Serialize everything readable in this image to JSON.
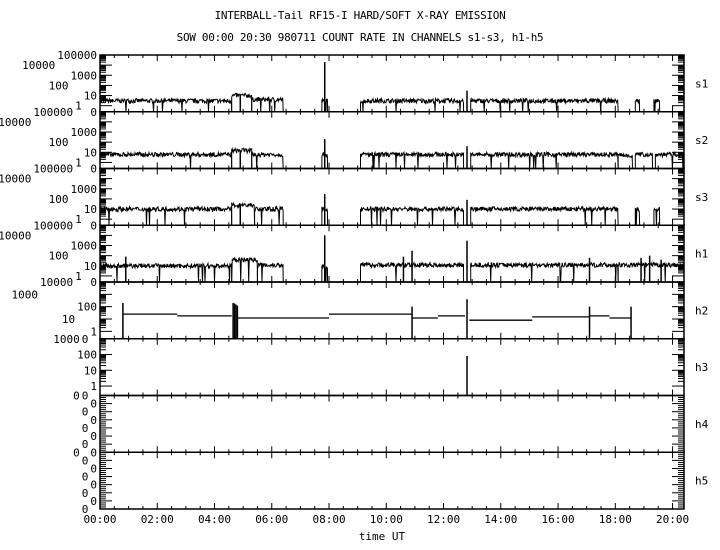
{
  "title": "INTERBALL-Tail RF15-I HARD/SOFT X-RAY EMISSION",
  "subtitle": "SOW 00:00 20:30 980711  COUNT RATE IN CHANNELS s1-s3, h1-h5",
  "chart_data": {
    "type": "line",
    "title": "INTERBALL-Tail RF15-I HARD/SOFT X-RAY EMISSION",
    "xlabel": "time UT",
    "x_unit": "hours UT",
    "xlim": [
      0,
      20.4
    ],
    "x_ticks": [
      "00:00",
      "02:00",
      "04:00",
      "06:00",
      "08:00",
      "10:00",
      "12:00",
      "14:00",
      "16:00",
      "18:00",
      "20:00"
    ],
    "y_scale": "log",
    "grid": false,
    "panels": [
      {
        "name": "s1",
        "y_ticks": [
          "0",
          "1",
          "10",
          "100",
          "1000",
          "10000",
          "100000"
        ],
        "segments": [
          [
            0,
            4.6,
            3
          ],
          [
            4.6,
            5.3,
            10
          ],
          [
            5.3,
            6.4,
            4
          ],
          [
            7.75,
            7.95,
            3
          ],
          [
            9.1,
            12.7,
            3
          ],
          [
            12.95,
            18.1,
            3
          ],
          [
            18.7,
            18.85,
            3
          ],
          [
            19.35,
            19.55,
            3
          ]
        ],
        "peaks": [
          [
            7.85,
            20000
          ],
          [
            12.82,
            30
          ],
          [
            4.9,
            12
          ]
        ]
      },
      {
        "name": "s2",
        "y_ticks": [
          "0",
          "1",
          "10",
          "100",
          "1000",
          "10000",
          "100000"
        ],
        "segments": [
          [
            0,
            4.6,
            6
          ],
          [
            4.6,
            5.3,
            15
          ],
          [
            5.3,
            6.4,
            6
          ],
          [
            7.75,
            7.95,
            6
          ],
          [
            9.1,
            12.7,
            6
          ],
          [
            12.95,
            18.1,
            6
          ],
          [
            18.1,
            18.6,
            5
          ],
          [
            18.7,
            19.3,
            6
          ],
          [
            19.4,
            20.4,
            6
          ]
        ],
        "peaks": [
          [
            7.85,
            200
          ],
          [
            12.82,
            40
          ],
          [
            4.9,
            15
          ]
        ]
      },
      {
        "name": "s3",
        "y_ticks": [
          "0",
          "1",
          "10",
          "100",
          "1000",
          "10000",
          "100000"
        ],
        "segments": [
          [
            0,
            4.6,
            10
          ],
          [
            4.6,
            5.4,
            25
          ],
          [
            5.4,
            6.4,
            10
          ],
          [
            7.75,
            7.95,
            10
          ],
          [
            9.1,
            12.7,
            10
          ],
          [
            12.95,
            18.1,
            10
          ],
          [
            18.7,
            18.85,
            10
          ],
          [
            19.35,
            19.55,
            10
          ]
        ],
        "peaks": [
          [
            7.85,
            300
          ],
          [
            12.82,
            80
          ],
          [
            4.9,
            30
          ]
        ]
      },
      {
        "name": "h1",
        "y_ticks": [
          "0",
          "1",
          "10",
          "100",
          "1000",
          "10000",
          "100000"
        ],
        "segments": [
          [
            0,
            4.6,
            10
          ],
          [
            4.6,
            5.5,
            40
          ],
          [
            5.5,
            6.4,
            12
          ],
          [
            7.75,
            7.95,
            10
          ],
          [
            9.1,
            12.7,
            12
          ],
          [
            12.95,
            18.1,
            12
          ],
          [
            18.1,
            20.4,
            12
          ]
        ],
        "peaks": [
          [
            0.9,
            80
          ],
          [
            7.85,
            10000
          ],
          [
            12.82,
            3000
          ],
          [
            10.6,
            80
          ],
          [
            10.9,
            300
          ],
          [
            17.1,
            60
          ],
          [
            18.9,
            60
          ],
          [
            19.2,
            100
          ],
          [
            19.6,
            40
          ]
        ]
      },
      {
        "name": "h2",
        "y_ticks": [
          "0",
          "1",
          "10",
          "100",
          "1000",
          "10000"
        ],
        "steps": [
          [
            0.8,
            2.7,
            25
          ],
          [
            2.7,
            4.6,
            18
          ],
          [
            4.8,
            8.0,
            12
          ],
          [
            8.0,
            10.9,
            25
          ],
          [
            10.9,
            11.8,
            12
          ],
          [
            11.8,
            12.75,
            18
          ],
          [
            12.9,
            15.1,
            8
          ],
          [
            15.1,
            17.1,
            15
          ],
          [
            17.1,
            17.8,
            18
          ],
          [
            17.8,
            18.55,
            12
          ]
        ],
        "peaks": [
          [
            0.8,
            200
          ],
          [
            4.65,
            200
          ],
          [
            4.7,
            180
          ],
          [
            4.75,
            150
          ],
          [
            4.8,
            120
          ],
          [
            10.9,
            100
          ],
          [
            12.82,
            400
          ],
          [
            17.1,
            100
          ],
          [
            18.55,
            100
          ]
        ]
      },
      {
        "name": "h3",
        "y_ticks": [
          "0",
          "1",
          "10",
          "100",
          "1000"
        ],
        "steps": [],
        "peaks": [
          [
            12.82,
            80
          ]
        ]
      },
      {
        "name": "h4",
        "y_ticks": [
          "0",
          "0",
          "0",
          "0",
          "0",
          "0",
          "0",
          "0"
        ],
        "steps": [],
        "peaks": []
      },
      {
        "name": "h5",
        "y_ticks": [
          "0",
          "0",
          "0",
          "0",
          "0",
          "0",
          "0",
          "0"
        ],
        "steps": [],
        "peaks": []
      }
    ]
  }
}
